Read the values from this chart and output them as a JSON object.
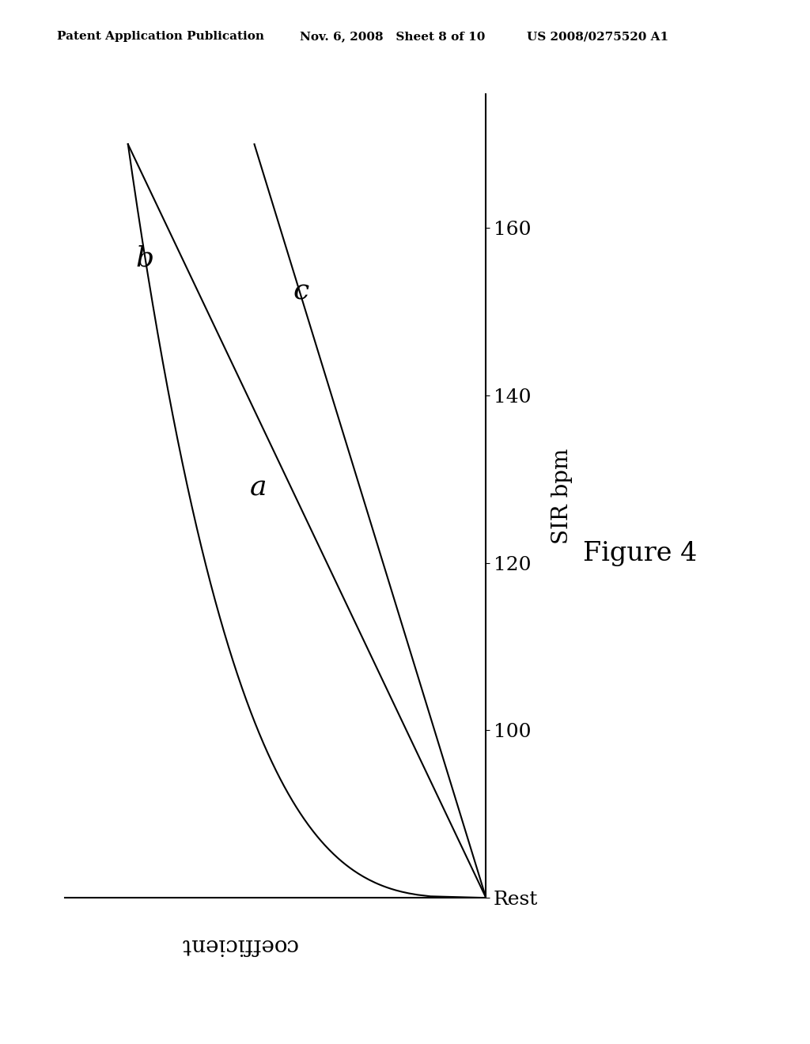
{
  "header_left": "Patent Application Publication",
  "header_mid": "Nov. 6, 2008   Sheet 8 of 10",
  "header_right": "US 2008/0275520 A1",
  "figure_caption": "Figure 4",
  "x_axis_label": "SIR bpm",
  "y_axis_label": "coefficient",
  "tick_labels": [
    "Rest",
    "100",
    "120",
    "140",
    "160"
  ],
  "tick_vals": [
    0,
    1,
    2,
    3,
    4
  ],
  "curve_a_label": "a",
  "curve_b_label": "b",
  "curve_c_label": "c",
  "line_color": "#000000",
  "bg_color": "#ffffff",
  "header_fontsize": 11,
  "tick_fontsize": 18,
  "label_fontsize": 20,
  "curve_label_fontsize": 26,
  "caption_fontsize": 24
}
